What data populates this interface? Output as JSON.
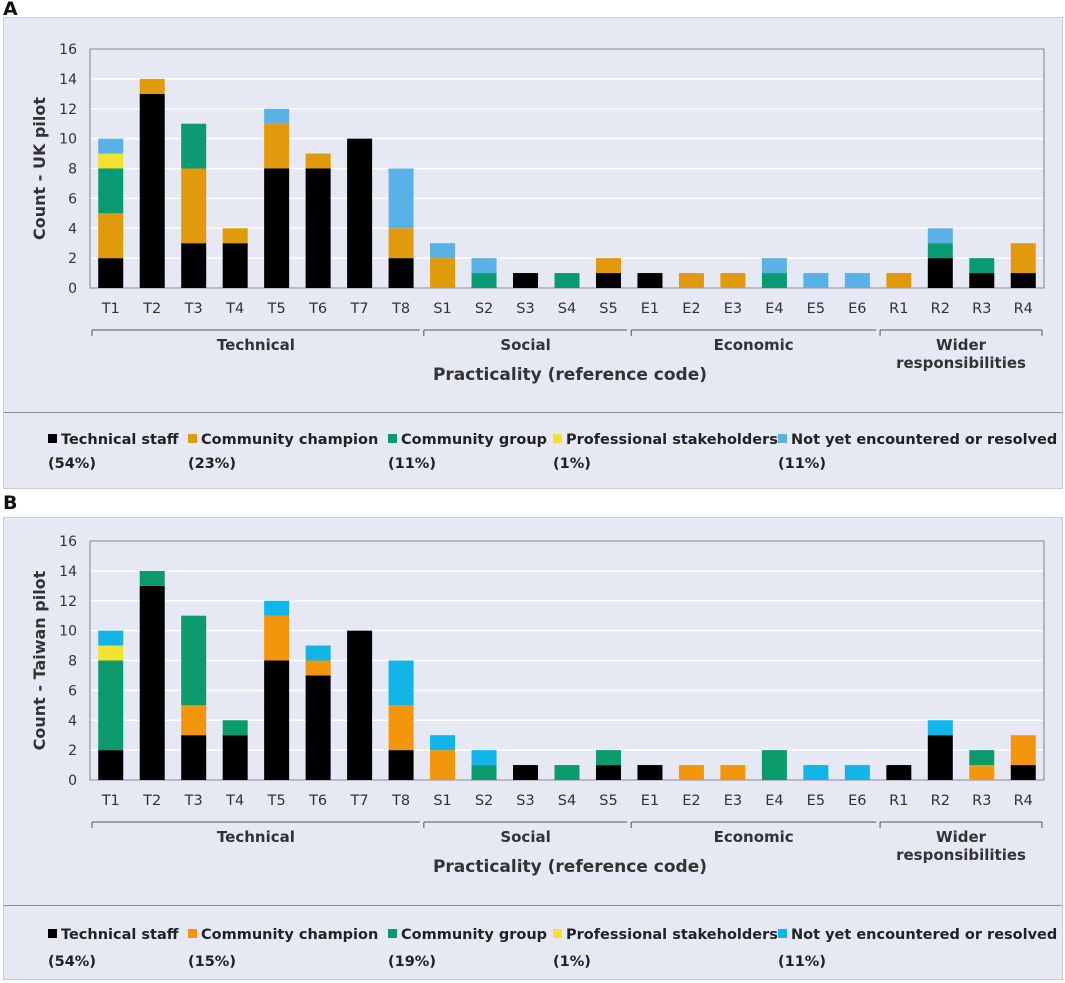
{
  "chart_data": [
    {
      "id": "A",
      "type": "bar",
      "stacked": true,
      "panel_label": "A",
      "categories": [
        "T1",
        "T2",
        "T3",
        "T4",
        "T5",
        "T6",
        "T7",
        "T8",
        "S1",
        "S2",
        "S3",
        "S4",
        "S5",
        "E1",
        "E2",
        "E3",
        "E4",
        "E5",
        "E6",
        "R1",
        "R2",
        "R3",
        "R4"
      ],
      "groups": [
        {
          "label": "Technical",
          "codes": [
            "T1",
            "T8"
          ]
        },
        {
          "label": "Social",
          "codes": [
            "S1",
            "S5"
          ]
        },
        {
          "label": "Economic",
          "codes": [
            "E1",
            "E6"
          ]
        },
        {
          "label": "Wider responsibilities",
          "codes": [
            "R1",
            "R4"
          ]
        }
      ],
      "series": [
        {
          "name": "Technical staff",
          "color": "#000000",
          "percent": "(54%)",
          "values": [
            2,
            13,
            3,
            3,
            8,
            8,
            10,
            2,
            0,
            0,
            1,
            0,
            1,
            1,
            0,
            0,
            0,
            0,
            0,
            0,
            2,
            1,
            1
          ]
        },
        {
          "name": "Community champion",
          "color": "#e19a0b",
          "percent": "(23%)",
          "values": [
            3,
            1,
            5,
            1,
            3,
            1,
            0,
            2,
            2,
            0,
            0,
            0,
            1,
            0,
            1,
            1,
            0,
            0,
            0,
            1,
            0,
            0,
            2
          ]
        },
        {
          "name": "Community group",
          "color": "#0a9a73",
          "percent": "(11%)",
          "values": [
            3,
            0,
            3,
            0,
            0,
            0,
            0,
            0,
            0,
            1,
            0,
            1,
            0,
            0,
            0,
            0,
            1,
            0,
            0,
            0,
            1,
            1,
            0
          ]
        },
        {
          "name": "Professional stakeholders",
          "color": "#f2e22f",
          "percent": "(1%)",
          "values": [
            1,
            0,
            0,
            0,
            0,
            0,
            0,
            0,
            0,
            0,
            0,
            0,
            0,
            0,
            0,
            0,
            0,
            0,
            0,
            0,
            0,
            0,
            0
          ]
        },
        {
          "name": "Not yet encountered or resolved",
          "color": "#5ab1e6",
          "percent": "(11%)",
          "values": [
            1,
            0,
            0,
            0,
            1,
            0,
            0,
            4,
            1,
            1,
            0,
            0,
            0,
            0,
            0,
            0,
            1,
            1,
            1,
            0,
            1,
            0,
            0
          ]
        }
      ],
      "ylabel": "Count - UK pilot",
      "xlabel": "Practicality (reference code)",
      "ylim": [
        0,
        16
      ],
      "yticks": [
        "0",
        "2",
        "4",
        "6",
        "8",
        "10",
        "12",
        "14",
        "16"
      ]
    },
    {
      "id": "B",
      "type": "bar",
      "stacked": true,
      "panel_label": "B",
      "categories": [
        "T1",
        "T2",
        "T3",
        "T4",
        "T5",
        "T6",
        "T7",
        "T8",
        "S1",
        "S2",
        "S3",
        "S4",
        "S5",
        "E1",
        "E2",
        "E3",
        "E4",
        "E5",
        "E6",
        "R1",
        "R2",
        "R3",
        "R4"
      ],
      "groups": [
        {
          "label": "Technical",
          "codes": [
            "T1",
            "T8"
          ]
        },
        {
          "label": "Social",
          "codes": [
            "S1",
            "S5"
          ]
        },
        {
          "label": "Economic",
          "codes": [
            "E1",
            "E6"
          ]
        },
        {
          "label": "Wider responsibilities",
          "codes": [
            "R1",
            "R4"
          ]
        }
      ],
      "series": [
        {
          "name": "Technical staff",
          "color": "#000000",
          "percent": "(54%)",
          "values": [
            2,
            13,
            3,
            3,
            8,
            7,
            10,
            2,
            0,
            0,
            1,
            0,
            1,
            1,
            0,
            0,
            0,
            0,
            0,
            1,
            3,
            0,
            1
          ]
        },
        {
          "name": "Community champion",
          "color": "#f4960b",
          "percent": "(15%)",
          "values": [
            0,
            0,
            2,
            0,
            3,
            1,
            0,
            3,
            2,
            0,
            0,
            0,
            0,
            0,
            1,
            1,
            0,
            0,
            0,
            0,
            0,
            1,
            2
          ]
        },
        {
          "name": "Community group",
          "color": "#0a9a6b",
          "percent": "(19%)",
          "values": [
            6,
            1,
            6,
            1,
            0,
            0,
            0,
            0,
            0,
            1,
            0,
            1,
            1,
            0,
            0,
            0,
            2,
            0,
            0,
            0,
            0,
            1,
            0
          ]
        },
        {
          "name": "Professional stakeholders",
          "color": "#f2e32f",
          "percent": "(1%)",
          "values": [
            1,
            0,
            0,
            0,
            0,
            0,
            0,
            0,
            0,
            0,
            0,
            0,
            0,
            0,
            0,
            0,
            0,
            0,
            0,
            0,
            0,
            0,
            0
          ]
        },
        {
          "name": "Not yet encountered or resolved",
          "color": "#11b5e8",
          "percent": "(11%)",
          "values": [
            1,
            0,
            0,
            0,
            1,
            1,
            0,
            3,
            1,
            1,
            0,
            0,
            0,
            0,
            0,
            0,
            0,
            1,
            1,
            0,
            1,
            0,
            0
          ]
        }
      ],
      "ylabel": "Count - Taiwan pilot",
      "xlabel": "Practicality (reference code)",
      "ylim": [
        0,
        16
      ],
      "yticks": [
        "0",
        "2",
        "4",
        "6",
        "8",
        "10",
        "12",
        "14",
        "16"
      ]
    }
  ]
}
